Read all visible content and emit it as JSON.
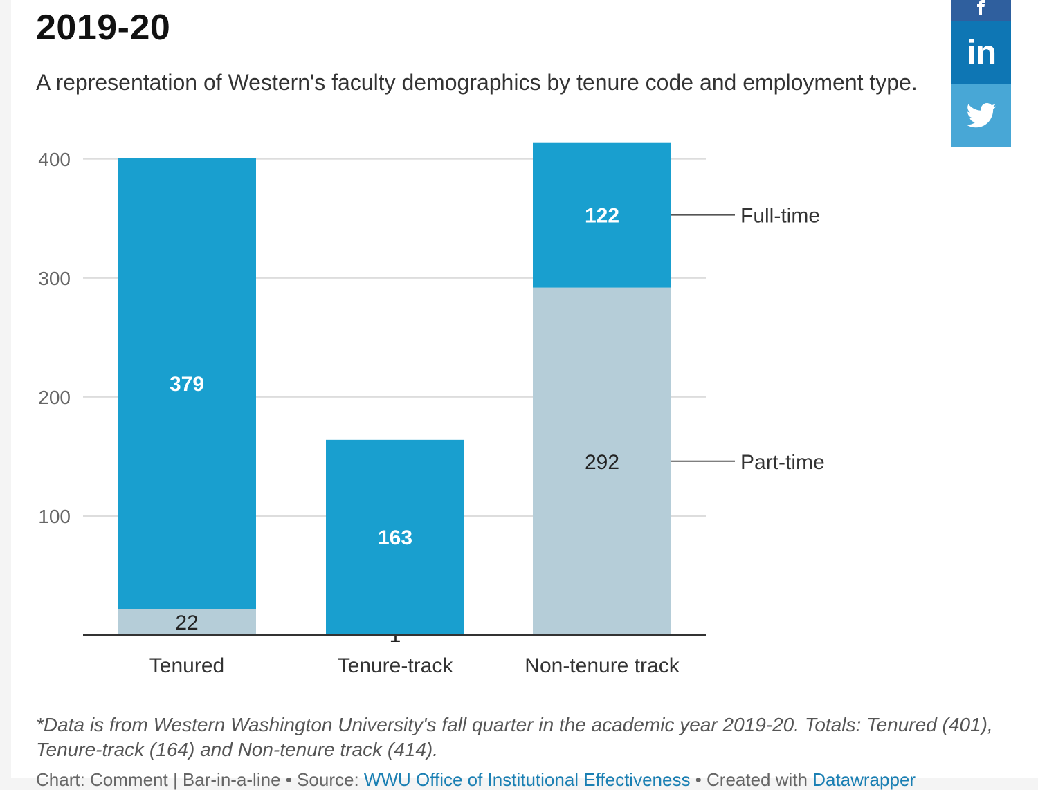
{
  "header": {
    "title": "2019-20",
    "subtitle": "A representation of Western's faculty demographics by tenure code and employment type."
  },
  "social": {
    "facebook_icon": "facebook-icon",
    "linkedin_label": "in",
    "twitter_icon": "twitter-icon"
  },
  "chart_data": {
    "type": "bar",
    "stacked": true,
    "categories": [
      "Tenured",
      "Tenure-track",
      "Non-tenure track"
    ],
    "series": [
      {
        "name": "Part-time",
        "values": [
          22,
          1,
          292
        ],
        "color": "#b5cdd8",
        "label_color": "#222222"
      },
      {
        "name": "Full-time",
        "values": [
          379,
          163,
          122
        ],
        "color": "#199fcf",
        "label_color": "#ffffff"
      }
    ],
    "yticks": [
      "100",
      "200",
      "300",
      "400"
    ],
    "ylim": [
      0,
      415
    ],
    "grid": true,
    "legend": "direct labels to the right of the last bar"
  },
  "footnote": "*Data is from Western Washington University's fall quarter in the academic year 2019-20. Totals: Tenured (401), Tenure-track (164) and Non-tenure track (414).",
  "credits": {
    "prefix": "Chart: Comment | Bar-in-a-line • Source: ",
    "source_link": "WWU Office of Institutional Effectiveness",
    "middle": " • Created with ",
    "tool_link": "Datawrapper"
  },
  "colors": {
    "full_time": "#199fcf",
    "part_time": "#b5cdd8",
    "grid": "#dddddd",
    "axis": "#333333"
  }
}
